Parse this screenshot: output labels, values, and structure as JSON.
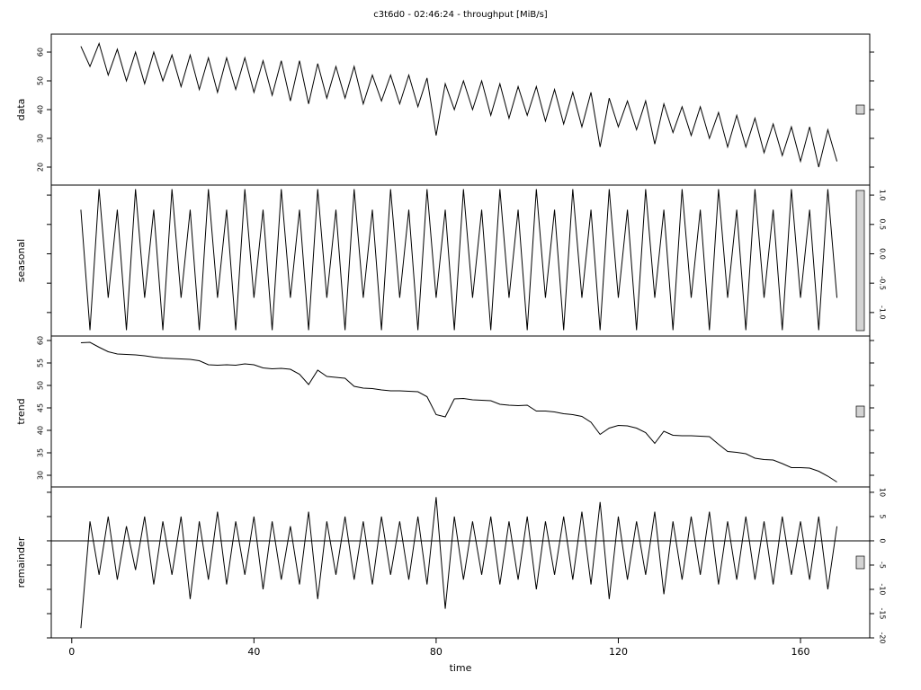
{
  "chart_data": {
    "type": "line",
    "title": "c3t6d0 - 02:46:24 - throughput [MiB/s]",
    "xlabel": "time",
    "xlim": [
      -4.5,
      175.2
    ],
    "xticks": [
      0,
      40,
      80,
      120,
      160
    ],
    "x": [
      2,
      4,
      6,
      8,
      10,
      12,
      14,
      16,
      18,
      20,
      22,
      24,
      26,
      28,
      30,
      32,
      34,
      36,
      38,
      40,
      42,
      44,
      46,
      48,
      50,
      52,
      54,
      56,
      58,
      60,
      62,
      64,
      66,
      68,
      70,
      72,
      74,
      76,
      78,
      80,
      82,
      84,
      86,
      88,
      90,
      92,
      94,
      96,
      98,
      100,
      102,
      104,
      106,
      108,
      110,
      112,
      114,
      116,
      118,
      120,
      122,
      124,
      126,
      128,
      130,
      132,
      134,
      136,
      138,
      140,
      142,
      144,
      146,
      148,
      150,
      152,
      154,
      156,
      158,
      160,
      162,
      164,
      166,
      168
    ],
    "series": [
      {
        "name": "data",
        "color": "#000000",
        "ticks_side": "left",
        "zero_line": false,
        "ylim": [
          13.75,
          66.25
        ],
        "yticks": [
          20,
          30,
          40,
          50,
          60
        ],
        "values": [
          62,
          55,
          63,
          52,
          61,
          50,
          60,
          49,
          60,
          50,
          59,
          48,
          59,
          47,
          58,
          46,
          58,
          47,
          58,
          46,
          57,
          45,
          57,
          43,
          57,
          42,
          56,
          44,
          55,
          44,
          55,
          42,
          52,
          43,
          52,
          42,
          52,
          41,
          51,
          31,
          49,
          40,
          50,
          40,
          50,
          38,
          49,
          37,
          48,
          38,
          48,
          36,
          47,
          35,
          46,
          34,
          46,
          27,
          44,
          34,
          43,
          33,
          43,
          28,
          42,
          32,
          41,
          31,
          41,
          30,
          39,
          27,
          38,
          27,
          37,
          25,
          35,
          24,
          34,
          22,
          34,
          20,
          33,
          22
        ]
      },
      {
        "name": "seasonal",
        "color": "#000000",
        "ticks_side": "right",
        "zero_line": false,
        "ylim": [
          -1.4,
          1.17
        ],
        "yticks": [
          {
            "value": -1,
            "label": "-1.0"
          },
          {
            "value": -0.5,
            "label": "-0.5"
          },
          {
            "value": 0,
            "label": "0.0"
          },
          {
            "value": 0.5,
            "label": "0.5"
          },
          {
            "value": 1,
            "label": "1.0"
          }
        ],
        "values": [
          0.75,
          -1.3,
          1.1,
          -0.75,
          0.75,
          -1.3,
          1.1,
          -0.75,
          0.75,
          -1.3,
          1.1,
          -0.75,
          0.75,
          -1.3,
          1.1,
          -0.75,
          0.75,
          -1.3,
          1.1,
          -0.75,
          0.75,
          -1.3,
          1.1,
          -0.75,
          0.75,
          -1.3,
          1.1,
          -0.75,
          0.75,
          -1.3,
          1.1,
          -0.75,
          0.75,
          -1.3,
          1.1,
          -0.75,
          0.75,
          -1.3,
          1.1,
          -0.75,
          0.75,
          -1.3,
          1.1,
          -0.75,
          0.75,
          -1.3,
          1.1,
          -0.75,
          0.75,
          -1.3,
          1.1,
          -0.75,
          0.75,
          -1.3,
          1.1,
          -0.75,
          0.75,
          -1.3,
          1.1,
          -0.75,
          0.75,
          -1.3,
          1.1,
          -0.75,
          0.75,
          -1.3,
          1.1,
          -0.75,
          0.75,
          -1.3,
          1.1,
          -0.75,
          0.75,
          -1.3,
          1.1,
          -0.75,
          0.75,
          -1.3,
          1.1,
          -0.75,
          0.75,
          -1.3,
          1.1,
          -0.75
        ]
      },
      {
        "name": "trend",
        "color": "#000000",
        "ticks_side": "left",
        "zero_line": false,
        "ylim": [
          27.4,
          61
        ],
        "yticks": [
          30,
          35,
          40,
          45,
          50,
          55,
          60
        ],
        "values": [
          59.5,
          59.6,
          58.5,
          57.5,
          57,
          56.9,
          56.8,
          56.6,
          56.3,
          56.1,
          56,
          55.9,
          55.8,
          55.5,
          54.6,
          54.5,
          54.6,
          54.5,
          54.8,
          54.6,
          53.9,
          53.7,
          53.8,
          53.6,
          52.5,
          50.2,
          53.4,
          52,
          51.8,
          51.6,
          49.8,
          49.4,
          49.3,
          49,
          48.8,
          48.8,
          48.7,
          48.6,
          47.5,
          43.5,
          43,
          47,
          47.1,
          46.8,
          46.7,
          46.6,
          45.8,
          45.6,
          45.5,
          45.6,
          44.3,
          44.3,
          44.1,
          43.7,
          43.5,
          43.1,
          41.8,
          39.1,
          40.5,
          41.1,
          41,
          40.5,
          39.5,
          37.1,
          39.8,
          38.9,
          38.8,
          38.8,
          38.7,
          38.6,
          36.9,
          35.3,
          35.1,
          34.8,
          33.8,
          33.5,
          33.4,
          32.6,
          31.7,
          31.7,
          31.6,
          30.9,
          29.8,
          28.5
        ]
      },
      {
        "name": "remainder",
        "color": "#000000",
        "ticks_side": "right",
        "zero_line": true,
        "ylim": [
          -20,
          11.1
        ],
        "yticks": [
          -20,
          -15,
          -10,
          -5,
          0,
          5,
          10
        ],
        "values": [
          -18,
          4,
          -7,
          5,
          -8,
          3,
          -6,
          5,
          -9,
          4,
          -7,
          5,
          -12,
          4,
          -8,
          6,
          -9,
          4,
          -7,
          5,
          -10,
          4,
          -8,
          3,
          -9,
          6,
          -12,
          4,
          -7,
          5,
          -8,
          4,
          -9,
          5,
          -7,
          4,
          -8,
          5,
          -9,
          9,
          -14,
          5,
          -8,
          4,
          -7,
          5,
          -9,
          4,
          -8,
          5,
          -10,
          4,
          -7,
          5,
          -8,
          6,
          -9,
          8,
          -12,
          5,
          -8,
          4,
          -7,
          6,
          -11,
          4,
          -8,
          5,
          -7,
          6,
          -9,
          4,
          -8,
          5,
          -8,
          4,
          -9,
          5,
          -7,
          4,
          -8,
          5,
          -10,
          3
        ]
      }
    ]
  }
}
